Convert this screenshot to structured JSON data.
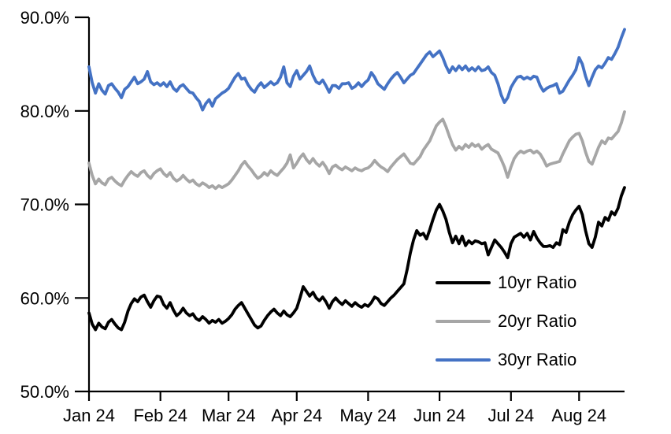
{
  "chart_data": {
    "type": "line",
    "title": "",
    "background": "#FFFFFF",
    "axis_color": "#000000",
    "grid": false,
    "legend_position": "inside-lower-right",
    "ylim": [
      50,
      90
    ],
    "y_ticks": [
      50,
      60,
      70,
      80,
      90
    ],
    "y_tick_labels": [
      "50.0%",
      "60.0%",
      "70.0%",
      "80.0%",
      "90.0%"
    ],
    "x_tick_labels": [
      "Jan 24",
      "Feb 24",
      "Mar 24",
      "Apr 24",
      "May 24",
      "Jun 24",
      "Jul 24",
      "Aug 24"
    ],
    "x_tick_indices": [
      0,
      22,
      43,
      64,
      86,
      108,
      130,
      151
    ],
    "series": [
      {
        "name": "10yr Ratio",
        "color": "#000000",
        "values": [
          58.4,
          57.2,
          56.6,
          57.3,
          56.9,
          56.7,
          57.4,
          57.7,
          57.2,
          56.8,
          56.6,
          57.4,
          58.6,
          59.4,
          59.9,
          59.6,
          60.1,
          60.3,
          59.6,
          59.0,
          59.7,
          60.2,
          60.1,
          59.3,
          58.9,
          59.5,
          58.7,
          58.1,
          58.4,
          58.9,
          58.4,
          58.1,
          58.3,
          57.8,
          57.6,
          58.0,
          57.7,
          57.3,
          57.6,
          57.4,
          57.7,
          57.3,
          57.5,
          57.8,
          58.2,
          58.8,
          59.2,
          59.5,
          58.9,
          58.3,
          57.7,
          57.1,
          56.8,
          57.0,
          57.6,
          58.1,
          58.5,
          58.8,
          58.4,
          58.1,
          58.6,
          58.2,
          58.0,
          58.4,
          58.9,
          60.0,
          61.2,
          60.7,
          60.2,
          60.6,
          60.0,
          59.7,
          60.1,
          59.6,
          58.9,
          59.6,
          60.0,
          59.6,
          59.3,
          59.7,
          59.4,
          59.1,
          59.5,
          59.2,
          59.0,
          59.3,
          59.1,
          59.5,
          60.1,
          59.9,
          59.4,
          59.2,
          59.6,
          60.0,
          60.3,
          60.7,
          61.1,
          61.5,
          63.0,
          64.8,
          66.2,
          67.2,
          66.7,
          66.9,
          66.3,
          67.3,
          68.4,
          69.4,
          70.0,
          69.3,
          68.4,
          67.0,
          65.9,
          66.6,
          65.8,
          66.6,
          65.6,
          66.1,
          65.8,
          66.1,
          66.0,
          65.8,
          65.9,
          64.6,
          65.4,
          66.2,
          65.8,
          65.4,
          64.9,
          64.3,
          65.8,
          66.5,
          66.7,
          66.9,
          66.5,
          66.9,
          66.2,
          67.1,
          66.4,
          65.9,
          65.5,
          65.5,
          65.6,
          65.4,
          65.9,
          65.7,
          67.3,
          67.0,
          68.1,
          68.9,
          69.4,
          69.8,
          68.9,
          67.2,
          65.8,
          65.4,
          66.5,
          68.1,
          67.7,
          68.6,
          68.3,
          69.2,
          68.9,
          69.6,
          70.9,
          71.8
        ]
      },
      {
        "name": "20yr Ratio",
        "color": "#A6A6A6",
        "values": [
          74.4,
          73.1,
          72.2,
          72.7,
          72.3,
          72.1,
          72.7,
          72.9,
          72.5,
          72.2,
          72.0,
          72.6,
          73.1,
          73.5,
          73.2,
          73.0,
          73.4,
          73.6,
          73.1,
          72.8,
          73.3,
          73.6,
          73.8,
          73.3,
          73.0,
          73.4,
          72.8,
          72.5,
          72.7,
          73.1,
          72.7,
          72.4,
          72.6,
          72.2,
          72.0,
          72.3,
          72.1,
          71.8,
          72.0,
          71.7,
          72.0,
          71.8,
          72.0,
          72.2,
          72.6,
          73.1,
          73.6,
          74.2,
          74.6,
          74.1,
          73.7,
          73.2,
          72.8,
          73.0,
          73.4,
          73.1,
          73.6,
          73.3,
          73.1,
          73.5,
          73.9,
          74.4,
          75.3,
          73.9,
          74.4,
          75.0,
          75.4,
          74.8,
          74.4,
          74.9,
          74.4,
          74.1,
          74.5,
          74.0,
          73.3,
          74.0,
          74.2,
          73.9,
          73.7,
          74.0,
          73.8,
          73.6,
          73.9,
          73.7,
          73.6,
          73.8,
          73.9,
          74.2,
          74.7,
          74.3,
          74.0,
          73.8,
          73.5,
          74.0,
          74.4,
          74.8,
          75.1,
          75.4,
          74.9,
          74.4,
          74.3,
          74.7,
          75.1,
          75.8,
          76.3,
          76.8,
          77.6,
          78.4,
          78.8,
          79.1,
          78.3,
          77.3,
          76.4,
          75.8,
          76.2,
          75.9,
          76.4,
          76.1,
          76.5,
          76.2,
          76.4,
          75.9,
          76.2,
          76.4,
          75.9,
          75.7,
          75.5,
          74.8,
          74.0,
          72.9,
          74.0,
          74.9,
          75.4,
          75.7,
          75.5,
          75.7,
          75.8,
          75.5,
          75.7,
          75.4,
          74.8,
          74.1,
          74.3,
          74.4,
          74.5,
          74.6,
          75.4,
          76.1,
          76.8,
          77.2,
          77.5,
          77.6,
          76.8,
          75.6,
          74.6,
          74.3,
          75.2,
          76.1,
          76.8,
          76.5,
          77.1,
          77.0,
          77.4,
          77.8,
          78.7,
          79.9
        ]
      },
      {
        "name": "30yr Ratio",
        "color": "#4472C4",
        "values": [
          84.7,
          83.0,
          81.9,
          82.9,
          82.2,
          81.8,
          82.7,
          82.9,
          82.4,
          82.0,
          81.4,
          82.3,
          82.6,
          83.1,
          83.6,
          82.9,
          83.1,
          83.4,
          84.2,
          83.1,
          82.8,
          83.0,
          82.7,
          83.0,
          82.6,
          83.1,
          82.4,
          82.1,
          82.6,
          82.8,
          82.4,
          82.0,
          81.9,
          81.4,
          81.0,
          80.1,
          80.8,
          81.2,
          80.5,
          81.3,
          81.6,
          81.9,
          82.1,
          82.4,
          83.0,
          83.6,
          84.0,
          83.4,
          83.5,
          82.8,
          82.3,
          82.0,
          82.6,
          83.0,
          82.5,
          82.8,
          83.1,
          82.8,
          83.0,
          83.6,
          84.7,
          83.0,
          82.6,
          83.7,
          84.3,
          83.4,
          83.8,
          84.2,
          84.8,
          83.8,
          83.1,
          82.9,
          83.3,
          82.7,
          82.0,
          82.7,
          82.7,
          82.4,
          82.9,
          82.9,
          83.0,
          82.4,
          82.6,
          83.0,
          82.6,
          83.0,
          83.3,
          84.1,
          83.6,
          82.9,
          82.6,
          82.3,
          82.9,
          83.4,
          83.8,
          84.1,
          83.6,
          83.0,
          83.4,
          83.8,
          84.0,
          84.5,
          85.0,
          85.5,
          86.0,
          86.3,
          85.8,
          86.1,
          86.4,
          85.7,
          84.8,
          84.1,
          84.7,
          84.3,
          84.8,
          84.4,
          84.8,
          84.3,
          84.6,
          84.3,
          84.7,
          84.3,
          84.4,
          84.7,
          84.1,
          83.8,
          82.9,
          81.7,
          80.9,
          81.4,
          82.5,
          83.1,
          83.6,
          83.7,
          83.4,
          83.6,
          83.4,
          83.7,
          83.6,
          82.7,
          82.1,
          82.4,
          82.6,
          82.7,
          82.9,
          81.9,
          82.1,
          82.7,
          83.3,
          83.8,
          84.4,
          85.7,
          85.0,
          83.7,
          82.7,
          83.6,
          84.4,
          84.8,
          84.6,
          85.1,
          85.7,
          85.5,
          86.1,
          86.8,
          87.8,
          88.7
        ]
      }
    ]
  }
}
